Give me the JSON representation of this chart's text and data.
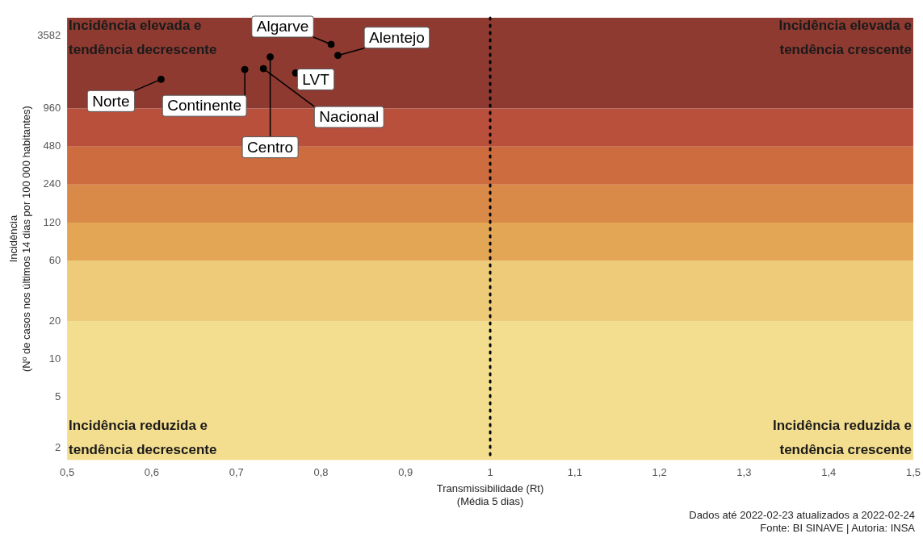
{
  "chart_data": {
    "type": "scatter",
    "xlabel": "Transmissibilidade (Rt)\n(Média 5 dias)",
    "ylabel": "Incidência\n(Nº de casos nos últimos 14 dias por 100 000 habitantes)",
    "log": "y",
    "grid": false,
    "legend": false,
    "marker": "circle",
    "xlim": [
      0.5,
      1.5
    ],
    "xticks": [
      {
        "value": 0.5,
        "label": "0,5"
      },
      {
        "value": 0.6,
        "label": "0,6"
      },
      {
        "value": 0.7,
        "label": "0,7"
      },
      {
        "value": 0.8,
        "label": "0,8"
      },
      {
        "value": 0.9,
        "label": "0,9"
      },
      {
        "value": 1,
        "label": "1"
      },
      {
        "value": 1.1,
        "label": "1,1"
      },
      {
        "value": 1.2,
        "label": "1,2"
      },
      {
        "value": 1.3,
        "label": "1,3"
      },
      {
        "value": 1.4,
        "label": "1,4"
      },
      {
        "value": 1.5,
        "label": "1,5"
      }
    ],
    "ylim": [
      1.6,
      5000
    ],
    "yticks": [
      2,
      5,
      10,
      20,
      60,
      120,
      240,
      480,
      960,
      3582
    ],
    "series": [
      {
        "name": "Norte",
        "color": "#000000",
        "x": [
          0.611
        ],
        "values": [
          1630
        ]
      },
      {
        "name": "Centro",
        "color": "#000000",
        "x": [
          0.74
        ],
        "values": [
          2450
        ]
      },
      {
        "name": "Continente",
        "color": "#000000",
        "x": [
          0.71
        ],
        "values": [
          1950
        ]
      },
      {
        "name": "Nacional",
        "color": "#000000",
        "x": [
          0.732
        ],
        "values": [
          1980
        ]
      },
      {
        "name": "Algarve",
        "color": "#000000",
        "x": [
          0.812
        ],
        "values": [
          3080
        ]
      },
      {
        "name": "Alentejo",
        "color": "#000000",
        "x": [
          0.82
        ],
        "values": [
          2520
        ]
      },
      {
        "name": "LVT",
        "color": "#000000",
        "x": [
          0.77
        ],
        "values": [
          1830
        ]
      }
    ],
    "bands": [
      {
        "axis": "y",
        "from": 1.6,
        "to": 20,
        "color": "#f3dd8e"
      },
      {
        "axis": "y",
        "from": 20,
        "to": 60,
        "color": "#edcb78"
      },
      {
        "axis": "y",
        "from": 60,
        "to": 120,
        "color": "#e3a655"
      },
      {
        "axis": "y",
        "from": 120,
        "to": 240,
        "color": "#d98a49"
      },
      {
        "axis": "y",
        "from": 240,
        "to": 480,
        "color": "#cd6c3e"
      },
      {
        "axis": "y",
        "from": 480,
        "to": 960,
        "color": "#b9503c"
      },
      {
        "axis": "y",
        "from": 960,
        "to": 5000,
        "color": "#8e3a31"
      }
    ],
    "ref_lines": [
      {
        "axis": "x",
        "value": 1,
        "color": "#000000",
        "line_style": "dotted"
      }
    ],
    "annotations": [
      "Incidência elevada e\ntendência decrescente",
      "Incidência elevada e\ntendência crescente",
      "Incidência reduzida e\ntendência decrescente",
      "Incidência reduzida e\ntendência crescente",
      "Dados até 2022-02-23 atualizados a 2022-02-24\nFonte: BI SINAVE | Autoria: INSA"
    ]
  }
}
